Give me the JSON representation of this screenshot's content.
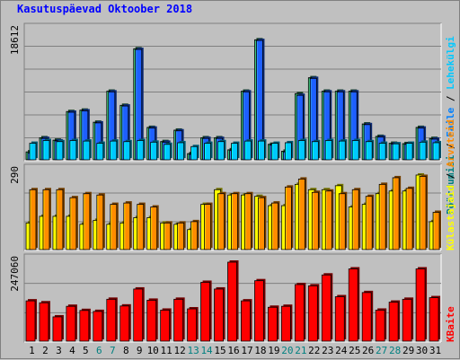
{
  "title": "Kasutuspäevad Oktoober 2018",
  "colors": {
    "background": "#c0c0c0",
    "plot_bg": "#c0c0c0",
    "grid": "#808080",
    "pages": "#2e8b57",
    "hits": "#1e5fff",
    "files": "#00c8ff",
    "visits": "#ff8c00",
    "sites": "#ffff00",
    "kbytes": "#ff0000",
    "weekend_label": "#008080",
    "weekday_label": "#000000"
  },
  "right_labels": {
    "top": [
      {
        "text": "Pöördumisi",
        "color": "#008080"
      },
      {
        "text": " / ",
        "color": "#000000"
      },
      {
        "text": "Faile",
        "color": "#0080ff"
      },
      {
        "text": " / ",
        "color": "#000000"
      },
      {
        "text": "Lehekülgi",
        "color": "#00c8ff"
      }
    ],
    "middle": [
      {
        "text": "Külastajaid",
        "color": "#ffff00"
      },
      {
        "text": " / ",
        "color": "#000000"
      },
      {
        "text": "Arvuteid",
        "color": "#ff8c00"
      }
    ],
    "bottom": [
      {
        "text": "KBaite",
        "color": "#ff0000"
      }
    ]
  },
  "chart_data": [
    {
      "type": "bar",
      "title": "Kasutuspäevad Oktoober 2018",
      "y_max_label": "18612",
      "ylim": [
        0,
        18612
      ],
      "grid": true,
      "categories": [
        "1",
        "2",
        "3",
        "4",
        "5",
        "6",
        "7",
        "8",
        "9",
        "10",
        "11",
        "12",
        "13",
        "14",
        "15",
        "16",
        "17",
        "18",
        "19",
        "20",
        "21",
        "22",
        "23",
        "24",
        "25",
        "26",
        "27",
        "28",
        "29",
        "30",
        "31"
      ],
      "weekend": [
        6,
        7,
        13,
        14,
        20,
        21,
        27,
        28
      ],
      "series": [
        {
          "name": "Pöördumisi",
          "values": [
            1150,
            3200,
            2850,
            7000,
            7200,
            5450,
            9950,
            7900,
            16100,
            4700,
            2650,
            4300,
            900,
            3200,
            3200,
            1450,
            9950,
            17400,
            2250,
            1250,
            9600,
            11900,
            9950,
            9950,
            9950,
            5200,
            3400,
            2400,
            2350,
            4700,
            3100
          ]
        },
        {
          "name": "Faile",
          "values": [
            1000,
            3100,
            2750,
            6900,
            7100,
            5350,
            9850,
            7800,
            16000,
            4600,
            2550,
            4200,
            800,
            3100,
            3100,
            1350,
            9850,
            17300,
            2150,
            1150,
            9350,
            11800,
            9850,
            9850,
            9850,
            5100,
            3300,
            2300,
            2250,
            4600,
            3000
          ]
        },
        {
          "name": "Lehekülgi",
          "values": [
            300,
            350,
            330,
            350,
            340,
            300,
            340,
            330,
            350,
            320,
            280,
            310,
            240,
            300,
            330,
            300,
            340,
            340,
            300,
            310,
            350,
            330,
            350,
            340,
            350,
            330,
            300,
            290,
            300,
            320,
            310
          ]
        }
      ]
    },
    {
      "type": "bar",
      "y_max_label": "290",
      "ylim": [
        0,
        290
      ],
      "grid": true,
      "categories": [
        "1",
        "2",
        "3",
        "4",
        "5",
        "6",
        "7",
        "8",
        "9",
        "10",
        "11",
        "12",
        "13",
        "14",
        "15",
        "16",
        "17",
        "18",
        "19",
        "20",
        "21",
        "22",
        "23",
        "24",
        "25",
        "26",
        "27",
        "28",
        "29",
        "30",
        "31"
      ],
      "series": [
        {
          "name": "Külastajaid",
          "values": [
            100,
            125,
            125,
            125,
            95,
            110,
            95,
            100,
            120,
            120,
            100,
            95,
            75,
            170,
            225,
            205,
            205,
            200,
            165,
            165,
            245,
            225,
            225,
            240,
            160,
            170,
            210,
            220,
            220,
            280,
            105
          ]
        },
        {
          "name": "Arvuteid",
          "values": [
            225,
            225,
            225,
            195,
            210,
            205,
            170,
            175,
            170,
            160,
            100,
            100,
            105,
            170,
            210,
            210,
            210,
            195,
            175,
            235,
            265,
            215,
            220,
            210,
            225,
            200,
            245,
            270,
            230,
            275,
            140
          ]
        }
      ]
    },
    {
      "type": "bar",
      "y_max_label": "247060",
      "ylim": [
        0,
        247060
      ],
      "grid": true,
      "categories": [
        "1",
        "2",
        "3",
        "4",
        "5",
        "6",
        "7",
        "8",
        "9",
        "10",
        "11",
        "12",
        "13",
        "14",
        "15",
        "16",
        "17",
        "18",
        "19",
        "20",
        "21",
        "22",
        "23",
        "24",
        "25",
        "26",
        "27",
        "28",
        "29",
        "30",
        "31"
      ],
      "series": [
        {
          "name": "KBaite",
          "values": [
            126000,
            120000,
            76000,
            109000,
            96000,
            93000,
            131000,
            110000,
            163000,
            128000,
            97000,
            131000,
            101000,
            184000,
            163000,
            247060,
            126000,
            189000,
            106000,
            109000,
            177000,
            173000,
            207000,
            139000,
            226000,
            152000,
            97000,
            122000,
            131000,
            226000,
            136000
          ]
        }
      ]
    }
  ]
}
